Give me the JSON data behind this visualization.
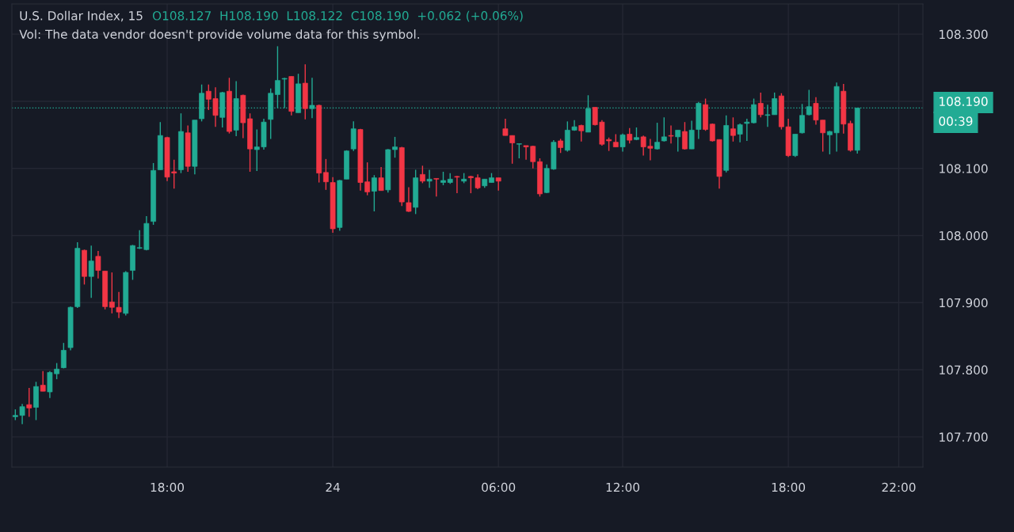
{
  "chart_data": {
    "type": "candlestick",
    "title": "U.S. Dollar Index, 15",
    "annotations": [
      "O108.127  H108.190  L108.122  C108.190  +0.062 (+0.06%)",
      "Vol: The data vendor doesn't provide volume data for this symbol.",
      "00:39"
    ],
    "categories": [
      null,
      null,
      null,
      null,
      null,
      null,
      null,
      null,
      null,
      null,
      null,
      null,
      null,
      null,
      null,
      null,
      null,
      null,
      null,
      null,
      null,
      null,
      "18:00",
      null,
      null,
      null,
      null,
      null,
      null,
      null,
      null,
      null,
      null,
      null,
      null,
      null,
      null,
      null,
      null,
      null,
      null,
      null,
      null,
      null,
      null,
      null,
      "24",
      null,
      null,
      null,
      null,
      null,
      null,
      null,
      null,
      null,
      null,
      null,
      null,
      null,
      null,
      null,
      null,
      null,
      null,
      null,
      null,
      null,
      null,
      null,
      "06:00",
      null,
      null,
      null,
      null,
      null,
      null,
      null,
      null,
      null,
      null,
      null,
      null,
      null,
      null,
      null,
      null,
      null,
      "12:00",
      null,
      null,
      null,
      null,
      null,
      null,
      null,
      null,
      null,
      null,
      null,
      null,
      null,
      null,
      null,
      null,
      null,
      null,
      null,
      null,
      null,
      null,
      null,
      "18:00",
      null,
      null,
      null,
      null,
      null,
      null,
      null,
      null,
      null,
      null,
      null,
      null,
      null,
      null,
      null,
      "22:00"
    ],
    "ohlc": [
      [
        107.73,
        107.741,
        107.725,
        107.732
      ],
      [
        107.732,
        107.749,
        107.719,
        107.745
      ],
      [
        107.748,
        107.773,
        107.73,
        107.743
      ],
      [
        107.744,
        107.782,
        107.725,
        107.775
      ],
      [
        107.777,
        107.798,
        107.768,
        107.768
      ],
      [
        107.767,
        107.798,
        107.758,
        107.796
      ],
      [
        107.794,
        107.81,
        107.786,
        107.801
      ],
      [
        107.803,
        107.84,
        107.802,
        107.829
      ],
      [
        107.833,
        107.894,
        107.829,
        107.893
      ],
      [
        107.894,
        107.99,
        107.892,
        107.981
      ],
      [
        107.978,
        107.979,
        107.927,
        107.939
      ],
      [
        107.939,
        107.985,
        107.907,
        107.962
      ],
      [
        107.969,
        107.977,
        107.936,
        107.948
      ],
      [
        107.947,
        107.947,
        107.89,
        107.894
      ],
      [
        107.901,
        107.945,
        107.884,
        107.893
      ],
      [
        107.893,
        107.916,
        107.877,
        107.886
      ],
      [
        107.884,
        107.947,
        107.881,
        107.945
      ],
      [
        107.948,
        107.986,
        107.934,
        107.985
      ],
      [
        107.981,
        108.008,
        107.98,
        107.982
      ],
      [
        107.979,
        108.029,
        107.978,
        108.018
      ],
      [
        108.021,
        108.108,
        108.016,
        108.097
      ],
      [
        108.098,
        108.169,
        108.098,
        108.149
      ],
      [
        108.146,
        108.147,
        108.081,
        108.087
      ],
      [
        108.095,
        108.113,
        108.07,
        108.093
      ],
      [
        108.098,
        108.182,
        108.093,
        108.155
      ],
      [
        108.153,
        108.164,
        108.095,
        108.103
      ],
      [
        108.103,
        108.172,
        108.091,
        108.172
      ],
      [
        108.174,
        108.225,
        108.17,
        108.212
      ],
      [
        108.215,
        108.225,
        108.187,
        108.203
      ],
      [
        108.204,
        108.221,
        108.162,
        108.179
      ],
      [
        108.176,
        108.214,
        108.161,
        108.213
      ],
      [
        108.215,
        108.235,
        108.152,
        108.155
      ],
      [
        108.157,
        108.23,
        108.148,
        108.204
      ],
      [
        108.209,
        108.21,
        108.145,
        108.168
      ],
      [
        108.174,
        108.182,
        108.095,
        108.129
      ],
      [
        108.128,
        108.158,
        108.096,
        108.132
      ],
      [
        108.132,
        108.174,
        108.128,
        108.169
      ],
      [
        108.173,
        108.219,
        108.144,
        108.212
      ],
      [
        108.21,
        108.282,
        108.19,
        108.231
      ],
      [
        108.233,
        108.235,
        108.19,
        108.234
      ],
      [
        108.237,
        108.237,
        108.179,
        108.185
      ],
      [
        108.183,
        108.241,
        108.183,
        108.226
      ],
      [
        108.227,
        108.255,
        108.173,
        108.189
      ],
      [
        108.189,
        108.235,
        108.175,
        108.194
      ],
      [
        108.194,
        108.195,
        108.079,
        108.093
      ],
      [
        108.094,
        108.114,
        108.068,
        108.08
      ],
      [
        108.079,
        108.087,
        108.004,
        108.01
      ],
      [
        108.012,
        108.083,
        108.007,
        108.082
      ],
      [
        108.084,
        108.127,
        108.084,
        108.126
      ],
      [
        108.129,
        108.17,
        108.126,
        108.159
      ],
      [
        108.158,
        108.159,
        108.067,
        108.079
      ],
      [
        108.08,
        108.109,
        108.06,
        108.065
      ],
      [
        108.066,
        108.09,
        108.036,
        108.086
      ],
      [
        108.086,
        108.102,
        108.067,
        108.067
      ],
      [
        108.068,
        108.129,
        108.064,
        108.128
      ],
      [
        108.128,
        108.147,
        108.116,
        108.132
      ],
      [
        108.131,
        108.132,
        108.044,
        108.05
      ],
      [
        108.049,
        108.072,
        108.035,
        108.036
      ],
      [
        108.042,
        108.098,
        108.032,
        108.086
      ],
      [
        108.091,
        108.104,
        108.078,
        108.081
      ],
      [
        108.081,
        108.098,
        108.071,
        108.084
      ],
      [
        108.085,
        108.085,
        108.058,
        108.084
      ],
      [
        108.079,
        108.095,
        108.075,
        108.082
      ],
      [
        108.079,
        108.093,
        108.077,
        108.084
      ],
      [
        108.088,
        108.089,
        108.063,
        108.087
      ],
      [
        108.081,
        108.093,
        108.078,
        108.084
      ],
      [
        108.088,
        108.089,
        108.063,
        108.086
      ],
      [
        108.086,
        108.091,
        108.069,
        108.071
      ],
      [
        108.074,
        108.084,
        108.071,
        108.084
      ],
      [
        108.079,
        108.093,
        108.079,
        108.086
      ],
      [
        108.086,
        108.086,
        108.067,
        108.081
      ],
      [
        108.159,
        108.174,
        108.149,
        108.149
      ],
      [
        108.149,
        108.149,
        108.107,
        108.138
      ],
      [
        108.136,
        108.137,
        108.115,
        108.136
      ],
      [
        108.134,
        108.134,
        108.113,
        108.132
      ],
      [
        108.133,
        108.134,
        108.1,
        108.11
      ],
      [
        108.11,
        108.115,
        108.058,
        108.062
      ],
      [
        108.064,
        108.106,
        108.063,
        108.1
      ],
      [
        108.099,
        108.142,
        108.098,
        108.139
      ],
      [
        108.141,
        108.144,
        108.123,
        108.131
      ],
      [
        108.127,
        108.17,
        108.125,
        108.157
      ],
      [
        108.157,
        108.172,
        108.156,
        108.162
      ],
      [
        108.164,
        108.165,
        108.14,
        108.156
      ],
      [
        108.154,
        108.209,
        108.154,
        108.189
      ],
      [
        108.191,
        108.191,
        108.164,
        108.165
      ],
      [
        108.169,
        108.172,
        108.134,
        108.136
      ],
      [
        108.143,
        108.146,
        108.126,
        108.141
      ],
      [
        108.139,
        108.151,
        108.132,
        108.132
      ],
      [
        108.132,
        108.152,
        108.125,
        108.15
      ],
      [
        108.151,
        108.16,
        108.137,
        108.142
      ],
      [
        108.143,
        108.161,
        108.142,
        108.146
      ],
      [
        108.147,
        108.149,
        108.119,
        108.132
      ],
      [
        108.133,
        108.144,
        108.112,
        108.13
      ],
      [
        108.129,
        108.168,
        108.128,
        108.139
      ],
      [
        108.141,
        108.176,
        108.14,
        108.147
      ],
      [
        108.149,
        108.164,
        108.137,
        108.148
      ],
      [
        108.147,
        108.157,
        108.125,
        108.157
      ],
      [
        108.155,
        108.169,
        108.128,
        108.129
      ],
      [
        108.129,
        108.171,
        108.129,
        108.157
      ],
      [
        108.158,
        108.199,
        108.144,
        108.197
      ],
      [
        108.195,
        108.204,
        108.156,
        108.158
      ],
      [
        108.166,
        108.167,
        108.14,
        108.141
      ],
      [
        108.143,
        108.143,
        108.07,
        108.088
      ],
      [
        108.097,
        108.179,
        108.094,
        108.164
      ],
      [
        108.159,
        108.176,
        108.14,
        108.149
      ],
      [
        108.151,
        108.167,
        108.139,
        108.165
      ],
      [
        108.167,
        108.174,
        108.141,
        108.169
      ],
      [
        108.168,
        108.204,
        108.167,
        108.195
      ],
      [
        108.197,
        108.213,
        108.176,
        108.18
      ],
      [
        108.179,
        108.195,
        108.162,
        108.18
      ],
      [
        108.18,
        108.213,
        108.18,
        108.204
      ],
      [
        108.208,
        108.212,
        108.158,
        108.162
      ],
      [
        108.162,
        108.174,
        108.117,
        108.119
      ],
      [
        108.119,
        108.151,
        108.117,
        108.151
      ],
      [
        108.153,
        108.196,
        108.152,
        108.179
      ],
      [
        108.18,
        108.217,
        108.179,
        108.192
      ],
      [
        108.197,
        108.206,
        108.165,
        108.172
      ],
      [
        108.172,
        108.172,
        108.125,
        108.153
      ],
      [
        108.15,
        108.156,
        108.121,
        108.155
      ],
      [
        108.153,
        108.228,
        108.125,
        108.222
      ],
      [
        108.215,
        108.226,
        108.152,
        108.166
      ],
      [
        108.167,
        108.171,
        108.125,
        108.127
      ],
      [
        108.127,
        108.19,
        108.122,
        108.19
      ],
      null,
      null,
      null,
      null,
      null,
      null
    ],
    "ylim": [
      107.655,
      108.345
    ],
    "yticks": [
      {
        "value": 107.7,
        "label": "107.700"
      },
      {
        "value": 107.8,
        "label": "107.800"
      },
      {
        "value": 107.9,
        "label": "107.900"
      },
      {
        "value": 108.0,
        "label": "108.000"
      },
      {
        "value": 108.1,
        "label": "108.100"
      },
      {
        "value": 108.2,
        "label": null
      },
      {
        "value": 108.3,
        "label": "108.300"
      }
    ],
    "ref_lines": [
      {
        "axis": "y",
        "value": 108.19,
        "label": "108.190",
        "color": "#22ab94",
        "line_style": "dotted"
      }
    ],
    "grid": true
  }
}
